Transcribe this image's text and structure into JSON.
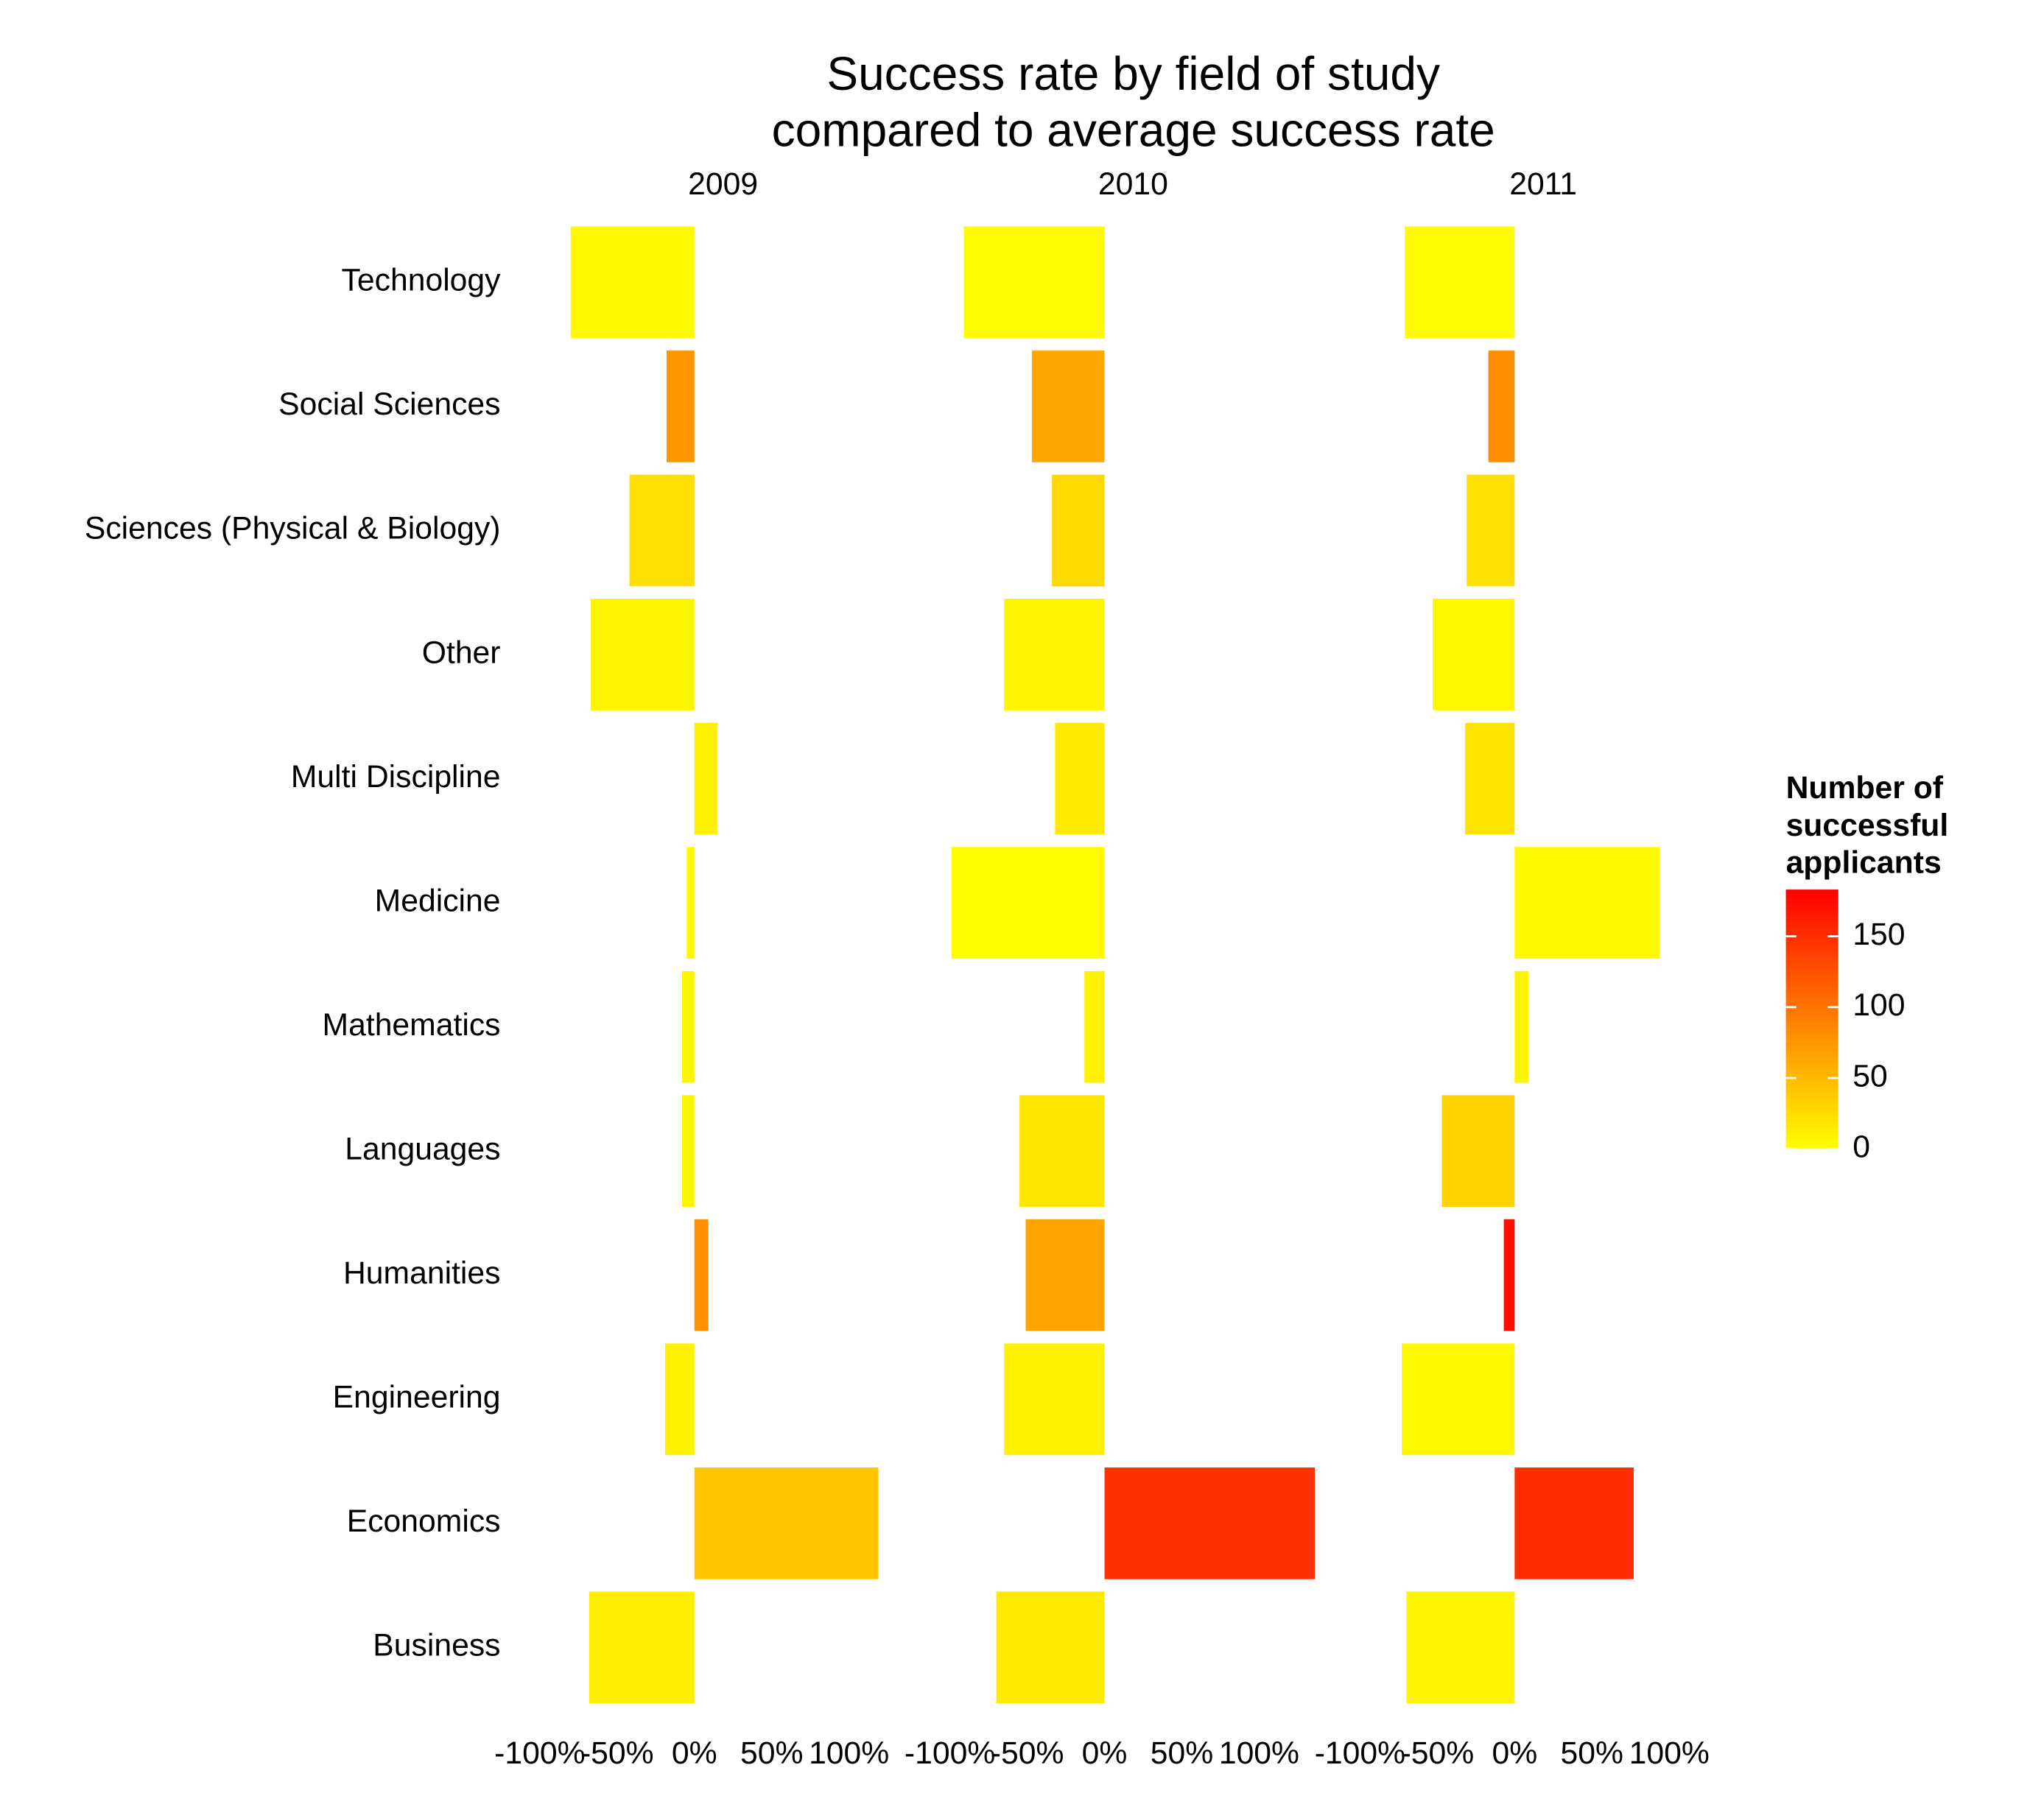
{
  "chart_data": {
    "type": "bar",
    "orientation": "horizontal",
    "title": [
      "Success rate by field of study",
      "compared to average success rate"
    ],
    "categories": [
      "Technology",
      "Social Sciences",
      "Sciences (Physical & Biology)",
      "Other",
      "Multi Discipline",
      "Medicine",
      "Mathematics",
      "Languages",
      "Humanities",
      "Engineering",
      "Economics",
      "Business"
    ],
    "facets": [
      {
        "name": "2009",
        "values": [
          -80,
          -18,
          -42,
          -67,
          15,
          -5,
          -8,
          -8,
          9,
          -19,
          119,
          -68
        ],
        "counts": [
          5,
          75,
          24,
          8,
          10,
          5,
          8,
          8,
          80,
          10,
          41,
          12
        ]
      },
      {
        "name": "2010",
        "values": [
          -91,
          -47,
          -34,
          -65,
          -32,
          -99,
          -13,
          -55,
          -51,
          -65,
          136,
          -70
        ],
        "counts": [
          3,
          64,
          28,
          8,
          15,
          2,
          10,
          18,
          66,
          10,
          148,
          14
        ]
      },
      {
        "name": "2011",
        "values": [
          -71,
          -17,
          -31,
          -53,
          -32,
          94,
          9,
          -47,
          -7,
          -73,
          77,
          -70
        ],
        "counts": [
          3,
          82,
          22,
          6,
          20,
          4,
          8,
          33,
          172,
          5,
          150,
          7
        ]
      }
    ],
    "xlim": [
      -111,
      148
    ],
    "xticks": [
      {
        "value": -100,
        "label": "-100%"
      },
      {
        "value": -50,
        "label": "-50%"
      },
      {
        "value": 0,
        "label": "0%"
      },
      {
        "value": 50,
        "label": "50%"
      },
      {
        "value": 100,
        "label": "100%"
      }
    ],
    "color_scale": {
      "low": "#ffff00",
      "high": "#ff0000",
      "lim": [
        0,
        183
      ],
      "ticks": [
        0,
        50,
        100,
        150
      ]
    },
    "legend_title": [
      "Number of",
      "successful",
      "applicants"
    ]
  }
}
